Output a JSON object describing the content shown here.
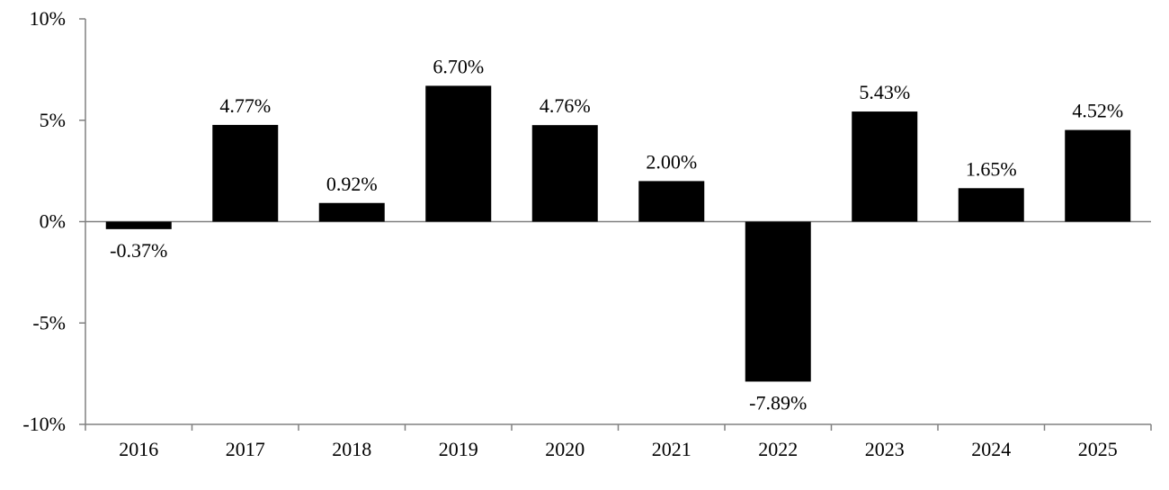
{
  "chart_data": {
    "type": "bar",
    "title": "",
    "xlabel": "",
    "ylabel": "",
    "categories": [
      "2016",
      "2017",
      "2018",
      "2019",
      "2020",
      "2021",
      "2022",
      "2023",
      "2024",
      "2025"
    ],
    "values": [
      -0.37,
      4.77,
      0.92,
      6.7,
      4.76,
      2.0,
      -7.89,
      5.43,
      1.65,
      4.52
    ],
    "data_labels": [
      "-0.37%",
      "4.77%",
      "0.92%",
      "6.70%",
      "4.76%",
      "2.00%",
      "-7.89%",
      "5.43%",
      "1.65%",
      "4.52%"
    ],
    "ylim": [
      -10,
      10
    ],
    "yticks": [
      10,
      5,
      0,
      -5,
      -10
    ],
    "ytick_labels": [
      "10%",
      "5%",
      "0%",
      "-5%",
      "-10%"
    ],
    "grid": false,
    "legend": "none",
    "colors": {
      "bar": "#000000",
      "axis": "#808080",
      "text": "#000000"
    }
  }
}
